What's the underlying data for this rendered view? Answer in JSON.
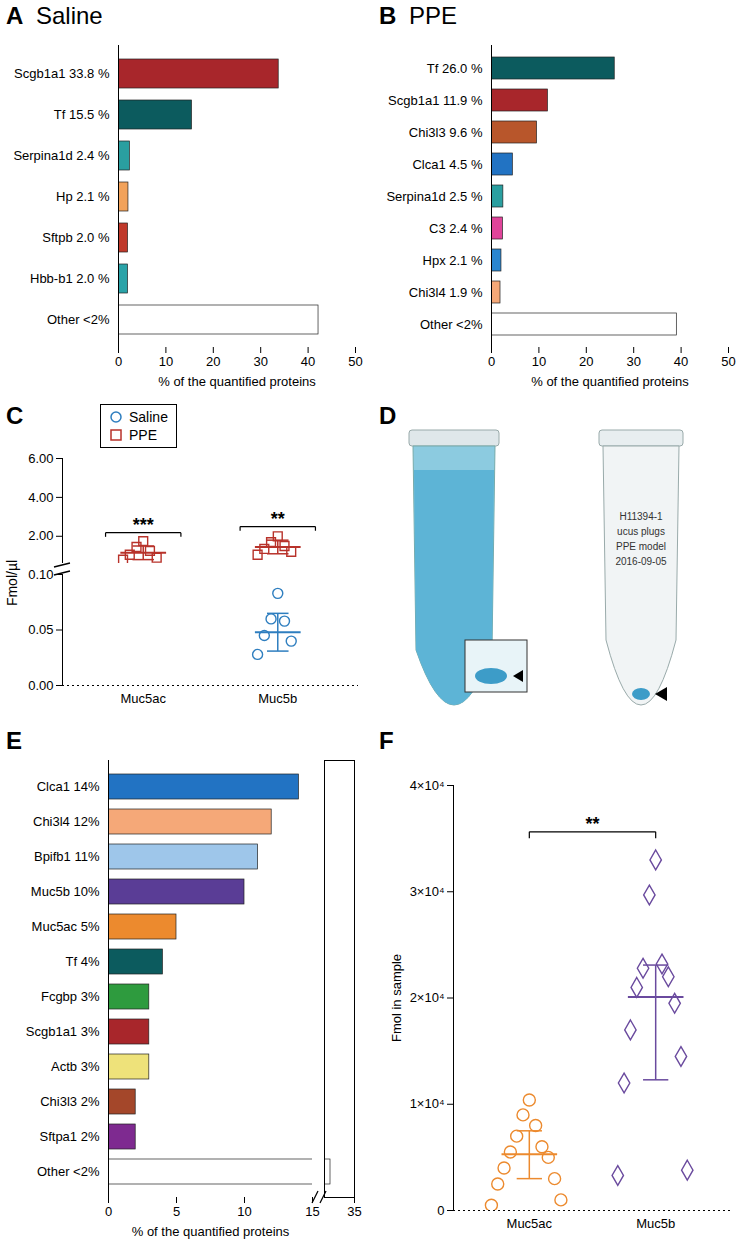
{
  "chart_data": [
    {
      "panel": "A",
      "type": "bar",
      "orientation": "horizontal",
      "title": "Saline",
      "categories": [
        "Scgb1a1 33.8 %",
        "Tf 15.5 %",
        "Serpina1d 2.4 %",
        "Hp 2.1 %",
        "Sftpb 2.0 %",
        "Hbb-b1 2.0 %",
        "Other <2%"
      ],
      "values": [
        33.8,
        15.5,
        2.4,
        2.1,
        2.0,
        2.0,
        42.2
      ],
      "colors": [
        "#a8262b",
        "#0c5b5e",
        "#2a9fa0",
        "#f2a25a",
        "#c0392b",
        "#2aa3a8",
        "#ffffff"
      ],
      "xlim": [
        0,
        50
      ],
      "xticks": [
        0,
        10,
        20,
        30,
        40,
        50
      ],
      "xlabel": "% of the quantified proteins"
    },
    {
      "panel": "B",
      "type": "bar",
      "orientation": "horizontal",
      "title": "PPE",
      "categories": [
        "Tf 26.0 %",
        "Scgb1a1 11.9 %",
        "Chi3l3 9.6 %",
        "Clca1 4.5 %",
        "Serpina1d 2.5 %",
        "C3 2.4 %",
        "Hpx 2.1 %",
        "Chi3l4 1.9 %",
        "Other <2%"
      ],
      "values": [
        26.0,
        11.9,
        9.6,
        4.5,
        2.5,
        2.4,
        2.1,
        1.9,
        39.1
      ],
      "colors": [
        "#0c5b5e",
        "#a8262b",
        "#b8562b",
        "#2273c3",
        "#2a9fa0",
        "#e0449a",
        "#2a86d0",
        "#f5a878",
        "#ffffff"
      ],
      "xlim": [
        0,
        50
      ],
      "xticks": [
        0,
        10,
        20,
        30,
        40,
        50
      ],
      "xlabel": "% of the quantified proteins"
    },
    {
      "panel": "C",
      "type": "scatter",
      "categories": [
        "Muc5ac",
        "Muc5b"
      ],
      "ylabel": "Fmol/µl",
      "legend": "top-left",
      "y_segments": [
        {
          "ylim": [
            0.6,
            6
          ],
          "yticks": [
            {
              "value": 2,
              "label": "2.00"
            },
            {
              "value": 4,
              "label": "4.00"
            },
            {
              "value": 6,
              "label": "6.00"
            }
          ]
        },
        {
          "ylim": [
            0,
            0.1
          ],
          "yticks": [
            {
              "value": 0,
              "label": "0.00"
            },
            0.05,
            {
              "value": 0.1,
              "label": "0.10"
            }
          ]
        }
      ],
      "series": [
        {
          "name": "Saline",
          "color": "#2e7ebf",
          "marker": "circle",
          "values": [
            [],
            [
              0.083,
              0.06,
              0.058,
              0.045,
              0.04,
              0.028
            ]
          ],
          "mean": [
            null,
            0.048
          ],
          "error": [
            null,
            0.017
          ]
        },
        {
          "name": "PPE",
          "color": "#b8322a",
          "marker": "square",
          "values": [
            [
              1.75,
              1.45,
              1.25,
              1.05,
              0.9,
              0.8
            ],
            [
              2.0,
              1.7,
              1.5,
              1.35,
              1.2,
              1.05
            ]
          ],
          "mean": [
            1.15,
            1.45
          ],
          "error": [
            0.35,
            0.35
          ]
        }
      ],
      "annotations": [
        {
          "category": "Muc5ac",
          "text": "***"
        },
        {
          "category": "Muc5b",
          "text": "**"
        }
      ]
    },
    {
      "panel": "E",
      "type": "bar",
      "orientation": "horizontal",
      "categories": [
        "Clca1 14%",
        "Chi3l4 12%",
        "Bpifb1 11%",
        "Muc5b 10%",
        "Muc5ac 5%",
        "Tf 4%",
        "Fcgbp 3%",
        "Scgb1a1 3%",
        "Actb 3%",
        "Chi3l3 2%",
        "Sftpa1 2%",
        "Other <2%"
      ],
      "values": [
        14,
        12,
        11,
        10,
        5,
        4,
        3,
        3,
        3,
        2,
        2,
        31
      ],
      "colors": [
        "#2273c3",
        "#f5a878",
        "#9ec6ea",
        "#5a3d96",
        "#ec8a2e",
        "#0c5b5e",
        "#2e9b3e",
        "#a8262b",
        "#eee27a",
        "#a4472a",
        "#7e2a90",
        "#ffffff"
      ],
      "x_segments": [
        {
          "xlim": [
            0,
            15
          ],
          "xticks": [
            0,
            5,
            10,
            15
          ]
        },
        {
          "xlim": [
            30,
            35
          ],
          "xticks": [
            35
          ]
        }
      ],
      "xlabel": "% of the quantified proteins"
    },
    {
      "panel": "F",
      "type": "scatter",
      "categories": [
        "Muc5ac",
        "Muc5b"
      ],
      "ylabel": "Fmol in sample",
      "ylim": [
        0,
        40000
      ],
      "yticks": [
        0,
        {
          "value": 10000,
          "label": "1×10⁴"
        },
        {
          "value": 20000,
          "label": "2×10⁴"
        },
        {
          "value": 30000,
          "label": "3×10⁴"
        },
        {
          "value": 40000,
          "label": "4×10⁴"
        }
      ],
      "groups": [
        {
          "category": "Muc5ac",
          "color": "#ec8a2e",
          "marker": "circle",
          "values": [
            10400,
            9000,
            8000,
            7000,
            6000,
            5500,
            5000,
            4000,
            3000,
            2500,
            1000,
            500
          ],
          "mean": 5300,
          "error": [
            3000,
            7500
          ]
        },
        {
          "category": "Muc5b",
          "color": "#6a4a9e",
          "marker": "diamond",
          "values": [
            33000,
            29700,
            23200,
            22800,
            22000,
            21000,
            19500,
            17000,
            14500,
            12000,
            3800,
            3300
          ],
          "mean": 20100,
          "error": [
            12300,
            23100
          ]
        }
      ],
      "annotations": [
        {
          "categories": [
            "Muc5ac",
            "Muc5b"
          ],
          "text": "**"
        }
      ]
    }
  ],
  "photo": {
    "panel": "D",
    "tube_label": [
      "H11394-1",
      "ucus plugs",
      "PPE model",
      "2016-09-05"
    ]
  }
}
